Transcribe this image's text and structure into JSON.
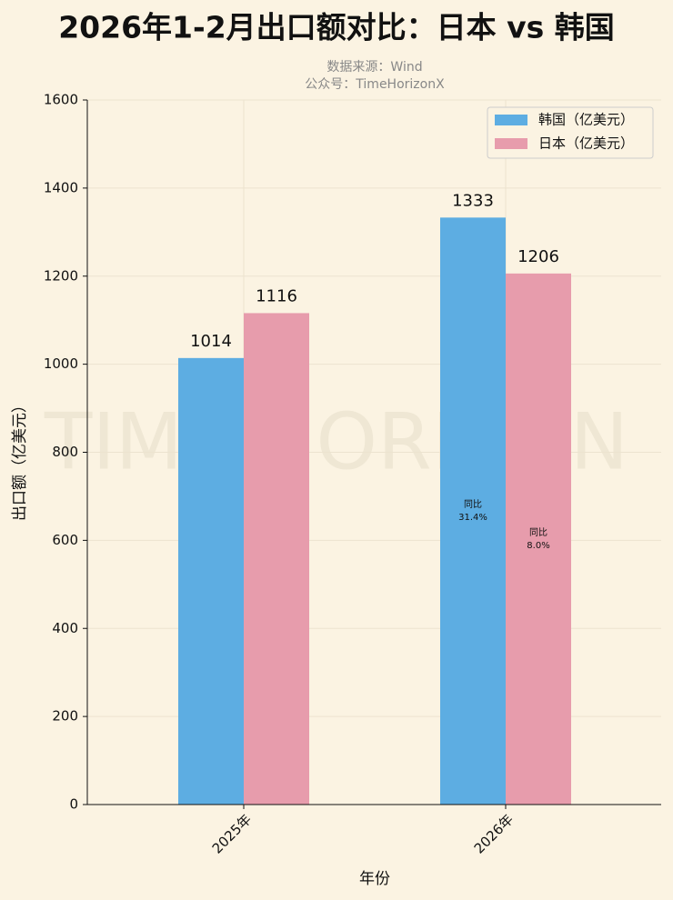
{
  "chart_data": {
    "type": "bar",
    "title": "2026年1-2月出口额对比：日本 vs 韩国",
    "subtitle": [
      "数据来源：Wind",
      "公众号：TimeHorizonX"
    ],
    "watermark": "TIME HORIZON",
    "x_label": "年份",
    "y_label": "出口额（亿美元）",
    "categories": [
      "2025年",
      "2026年"
    ],
    "series": [
      {
        "name": "韩国（亿美元）",
        "color": "#5dade2",
        "values": [
          1014,
          1333
        ],
        "yoy_labels": [
          null,
          "31.4%"
        ]
      },
      {
        "name": "日本（亿美元）",
        "color": "#e79cac",
        "values": [
          1116,
          1206
        ],
        "yoy_labels": [
          null,
          "8.0%"
        ]
      }
    ],
    "yoy_title": "同比",
    "ylim": [
      0,
      1600
    ],
    "yticks": [
      0,
      200,
      400,
      600,
      800,
      1000,
      1200,
      1400,
      1600
    ],
    "grid": true,
    "legend": "upper right"
  }
}
